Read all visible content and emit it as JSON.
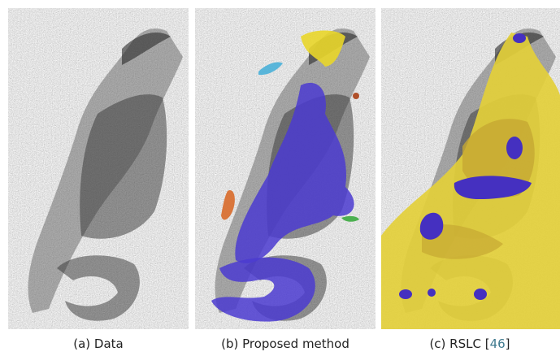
{
  "figure": {
    "panels": [
      {
        "caption": [
          "(a) Data"
        ]
      },
      {
        "caption": [
          "(b) Proposed method"
        ]
      },
      {
        "caption": [
          "(c) RSLC [",
          "46",
          "]"
        ]
      }
    ]
  }
}
